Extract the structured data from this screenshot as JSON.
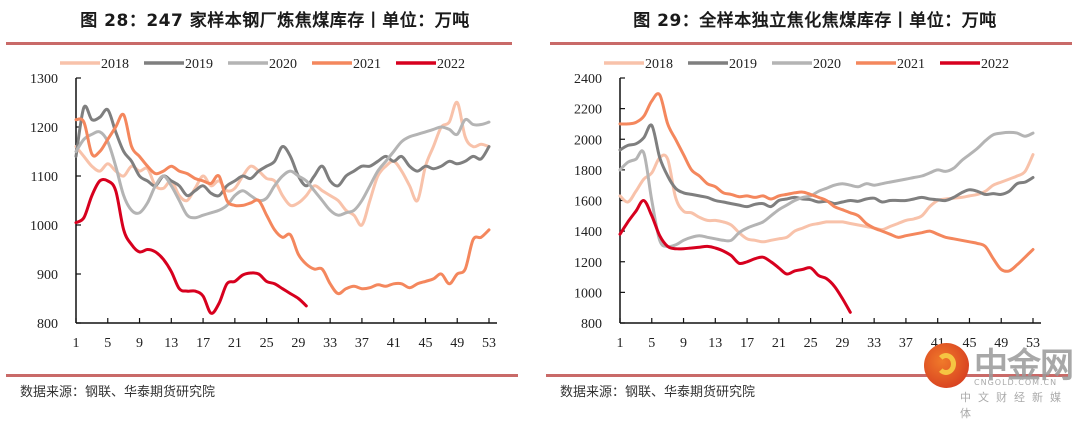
{
  "source_label": "数据来源：钢联、华泰期货研究院",
  "watermark": {
    "name": "中金网",
    "url": "CNGOLD.COM.CN",
    "tagline": "中文财经新媒体"
  },
  "chart_data": [
    {
      "type": "line",
      "title": "图 28：247 家样本钢厂炼焦煤库存丨单位：万吨",
      "xlabel": "",
      "ylabel": "",
      "xlim": [
        1,
        53
      ],
      "ylim": [
        800,
        1300
      ],
      "xticks": [
        "1",
        "5",
        "9",
        "13",
        "17",
        "21",
        "25",
        "29",
        "33",
        "37",
        "41",
        "45",
        "49",
        "53"
      ],
      "yticks": [
        "800",
        "900",
        "1000",
        "1100",
        "1200",
        "1300"
      ],
      "legend": "top",
      "series": [
        {
          "name": "2018",
          "color": "#f8c2aa",
          "values": [
            1160,
            1140,
            1120,
            1110,
            1125,
            1110,
            1100,
            1120,
            1110,
            1115,
            1080,
            1075,
            1090,
            1060,
            1050,
            1075,
            1100,
            1080,
            1090,
            1070,
            1075,
            1100,
            1120,
            1110,
            1095,
            1090,
            1060,
            1040,
            1045,
            1060,
            1080,
            1070,
            1060,
            1050,
            1030,
            1020,
            1000,
            1050,
            1100,
            1120,
            1130,
            1110,
            1080,
            1050,
            1120,
            1160,
            1200,
            1210,
            1250,
            1180,
            1160,
            1165,
            1160
          ]
        },
        {
          "name": "2019",
          "color": "#7f7f7f",
          "values": [
            1140,
            1240,
            1215,
            1220,
            1235,
            1190,
            1150,
            1130,
            1100,
            1090,
            1080,
            1100,
            1090,
            1080,
            1060,
            1070,
            1080,
            1065,
            1060,
            1080,
            1090,
            1100,
            1095,
            1110,
            1120,
            1130,
            1160,
            1140,
            1100,
            1080,
            1100,
            1120,
            1090,
            1080,
            1100,
            1110,
            1120,
            1120,
            1130,
            1140,
            1130,
            1140,
            1120,
            1110,
            1120,
            1115,
            1120,
            1130,
            1125,
            1130,
            1140,
            1135,
            1160
          ]
        },
        {
          "name": "2020",
          "color": "#b4b4b4",
          "values": [
            1150,
            1175,
            1185,
            1190,
            1170,
            1120,
            1060,
            1030,
            1025,
            1045,
            1080,
            1100,
            1080,
            1050,
            1020,
            1015,
            1020,
            1025,
            1030,
            1040,
            1060,
            1070,
            1060,
            1050,
            1055,
            1080,
            1100,
            1110,
            1100,
            1090,
            1070,
            1050,
            1030,
            1020,
            1025,
            1030,
            1050,
            1080,
            1110,
            1130,
            1150,
            1170,
            1180,
            1185,
            1190,
            1195,
            1200,
            1195,
            1185,
            1215,
            1205,
            1205,
            1210
          ]
        },
        {
          "name": "2021",
          "color": "#f4875d",
          "values": [
            1215,
            1210,
            1145,
            1150,
            1175,
            1200,
            1225,
            1160,
            1140,
            1120,
            1105,
            1110,
            1120,
            1110,
            1105,
            1095,
            1090,
            1085,
            1100,
            1050,
            1040,
            1040,
            1045,
            1050,
            1020,
            990,
            975,
            980,
            940,
            920,
            910,
            910,
            880,
            860,
            870,
            875,
            870,
            872,
            878,
            875,
            880,
            880,
            872,
            880,
            885,
            890,
            900,
            880,
            900,
            910,
            970,
            975,
            990
          ]
        },
        {
          "name": "2022",
          "color": "#d7001e",
          "values": [
            1005,
            1015,
            1060,
            1090,
            1090,
            1070,
            990,
            960,
            945,
            950,
            945,
            930,
            905,
            870,
            865,
            865,
            855,
            820,
            840,
            880,
            885,
            898,
            902,
            900,
            885,
            880,
            870,
            860,
            850,
            835
          ]
        }
      ]
    },
    {
      "type": "line",
      "title": "图 29：全样本独立焦化焦煤库存丨单位：万吨",
      "xlabel": "",
      "ylabel": "",
      "xlim": [
        1,
        53
      ],
      "ylim": [
        800,
        2400
      ],
      "xticks": [
        "1",
        "5",
        "9",
        "13",
        "17",
        "21",
        "25",
        "29",
        "33",
        "37",
        "41",
        "45",
        "49",
        "53"
      ],
      "yticks": [
        "800",
        "1000",
        "1200",
        "1400",
        "1600",
        "1800",
        "2000",
        "2200",
        "2400"
      ],
      "legend": "top",
      "series": [
        {
          "name": "2018",
          "color": "#f8c2aa",
          "values": [
            1630,
            1590,
            1660,
            1740,
            1780,
            1880,
            1870,
            1620,
            1530,
            1520,
            1490,
            1470,
            1470,
            1460,
            1440,
            1390,
            1350,
            1340,
            1330,
            1340,
            1350,
            1360,
            1400,
            1420,
            1440,
            1450,
            1460,
            1460,
            1460,
            1450,
            1440,
            1430,
            1420,
            1410,
            1430,
            1450,
            1470,
            1480,
            1500,
            1560,
            1600,
            1610,
            1615,
            1620,
            1630,
            1640,
            1660,
            1700,
            1720,
            1740,
            1760,
            1790,
            1900
          ]
        },
        {
          "name": "2019",
          "color": "#7f7f7f",
          "values": [
            1930,
            1960,
            1970,
            2010,
            2090,
            1880,
            1760,
            1680,
            1650,
            1640,
            1630,
            1620,
            1600,
            1590,
            1580,
            1570,
            1560,
            1575,
            1580,
            1560,
            1600,
            1610,
            1620,
            1610,
            1605,
            1590,
            1595,
            1580,
            1590,
            1600,
            1595,
            1610,
            1615,
            1590,
            1600,
            1600,
            1600,
            1610,
            1620,
            1610,
            1605,
            1600,
            1620,
            1650,
            1670,
            1660,
            1640,
            1645,
            1640,
            1660,
            1710,
            1720,
            1750
          ]
        },
        {
          "name": "2020",
          "color": "#b4b4b4",
          "values": [
            1800,
            1850,
            1870,
            1910,
            1600,
            1340,
            1300,
            1310,
            1340,
            1360,
            1370,
            1360,
            1350,
            1340,
            1340,
            1390,
            1420,
            1440,
            1460,
            1500,
            1540,
            1570,
            1600,
            1620,
            1630,
            1660,
            1680,
            1700,
            1710,
            1700,
            1690,
            1710,
            1700,
            1710,
            1720,
            1730,
            1740,
            1750,
            1760,
            1780,
            1800,
            1790,
            1810,
            1860,
            1900,
            1940,
            1990,
            2030,
            2040,
            2045,
            2040,
            2020,
            2040
          ]
        },
        {
          "name": "2021",
          "color": "#f4875d",
          "values": [
            2100,
            2100,
            2110,
            2150,
            2250,
            2290,
            2100,
            2000,
            1900,
            1800,
            1760,
            1710,
            1690,
            1650,
            1640,
            1625,
            1630,
            1620,
            1630,
            1610,
            1630,
            1640,
            1650,
            1655,
            1640,
            1620,
            1600,
            1560,
            1540,
            1520,
            1500,
            1450,
            1420,
            1400,
            1380,
            1360,
            1370,
            1380,
            1390,
            1400,
            1380,
            1360,
            1350,
            1340,
            1330,
            1320,
            1300,
            1220,
            1150,
            1140,
            1180,
            1230,
            1280
          ]
        },
        {
          "name": "2022",
          "color": "#d7001e",
          "values": [
            1380,
            1460,
            1530,
            1600,
            1500,
            1370,
            1300,
            1285,
            1285,
            1290,
            1295,
            1300,
            1290,
            1270,
            1240,
            1190,
            1200,
            1220,
            1230,
            1200,
            1160,
            1120,
            1140,
            1150,
            1160,
            1110,
            1090,
            1040,
            960,
            870
          ]
        }
      ]
    }
  ]
}
